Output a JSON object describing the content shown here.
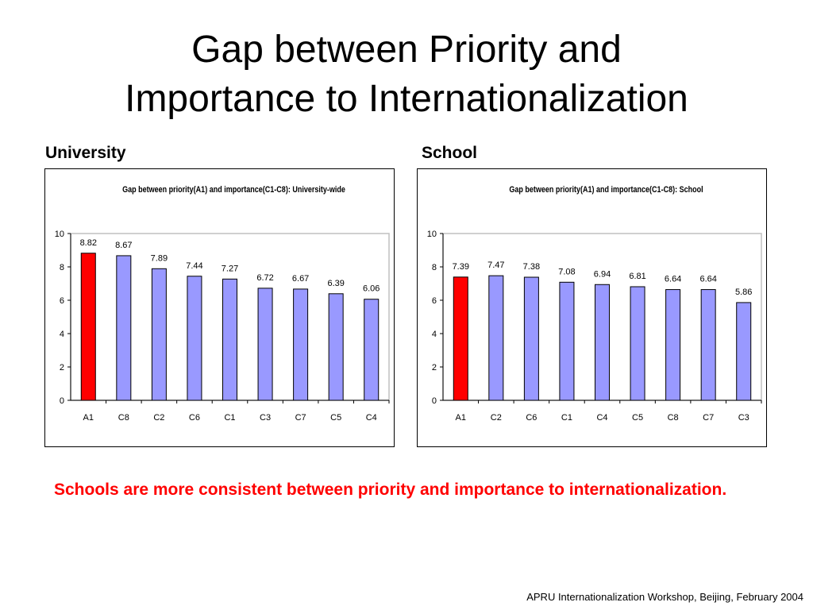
{
  "slide": {
    "title_line1": "Gap between Priority and",
    "title_line2": "Importance to Internationalization",
    "left_label": "University",
    "right_label": "School",
    "conclusion": "Schools are more consistent between priority and importance to internationalization.",
    "footer": "APRU Internationalization Workshop, Beijing, February 2004"
  },
  "colors": {
    "highlight_bar": "#ff0000",
    "normal_bar": "#9999ff",
    "plot_border": "#c0c0c0",
    "conclusion_text": "#ff0000"
  },
  "chart_data": [
    {
      "type": "bar",
      "title": "Gap between priority(A1) and importance(C1-C8): University-wide",
      "categories": [
        "A1",
        "C8",
        "C2",
        "C6",
        "C1",
        "C3",
        "C7",
        "C5",
        "C4"
      ],
      "values": [
        8.82,
        8.67,
        7.89,
        7.44,
        7.27,
        6.72,
        6.67,
        6.39,
        6.06
      ],
      "value_labels": [
        "8.82",
        "8.67",
        "7.89",
        "7.44",
        "7.27",
        "6.72",
        "6.67",
        "6.39",
        "6.06"
      ],
      "highlight_index": 0,
      "ylim": [
        0,
        10
      ],
      "yticks": [
        "0",
        "2",
        "4",
        "6",
        "8",
        "10"
      ],
      "grid": false,
      "legend": "none"
    },
    {
      "type": "bar",
      "title": "Gap between priority(A1) and importance(C1-C8): School",
      "categories": [
        "A1",
        "C2",
        "C6",
        "C1",
        "C4",
        "C5",
        "C8",
        "C7",
        "C3"
      ],
      "values": [
        7.39,
        7.47,
        7.38,
        7.08,
        6.94,
        6.81,
        6.64,
        6.64,
        5.86
      ],
      "value_labels": [
        "7.39",
        "7.47",
        "7.38",
        "7.08",
        "6.94",
        "6.81",
        "6.64",
        "6.64",
        "5.86"
      ],
      "highlight_index": 0,
      "ylim": [
        0,
        10
      ],
      "yticks": [
        "0",
        "2",
        "4",
        "6",
        "8",
        "10"
      ],
      "grid": false,
      "legend": "none"
    }
  ]
}
